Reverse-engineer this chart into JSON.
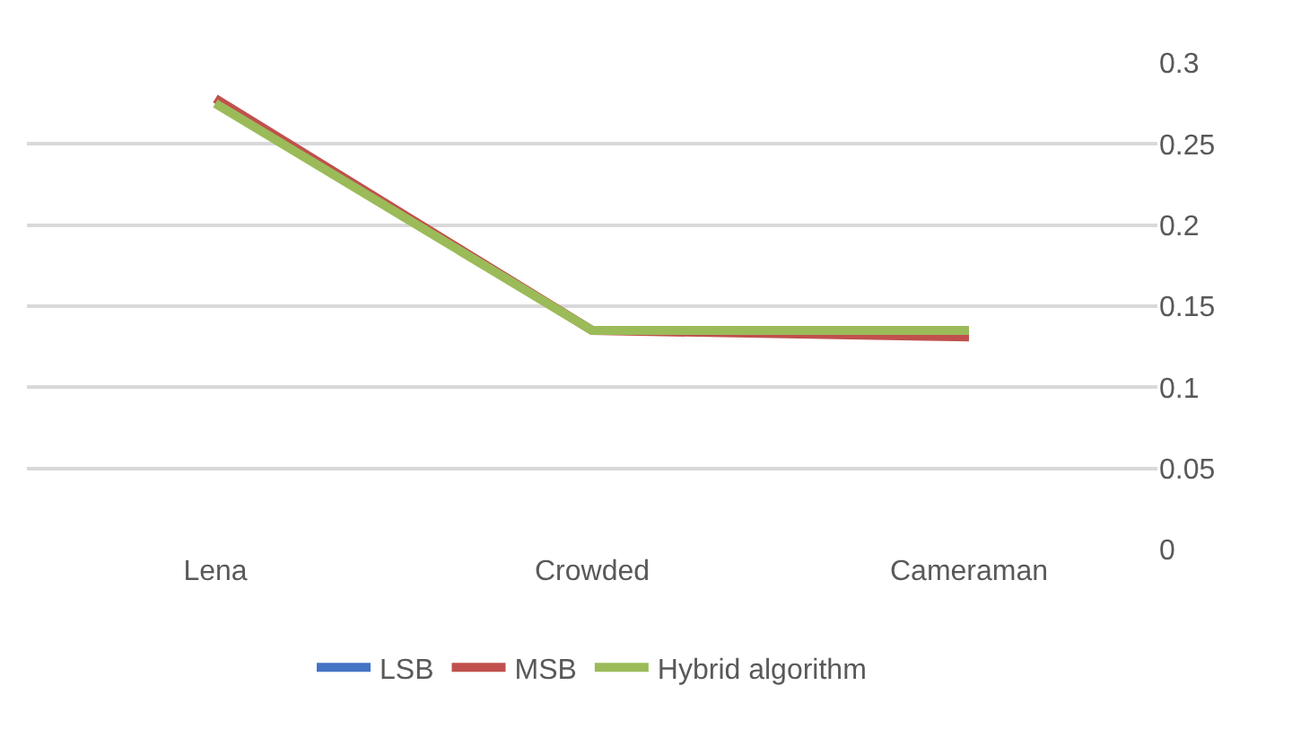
{
  "chart_data": {
    "type": "line",
    "categories": [
      "Lena",
      "Crowded",
      "Cameraman"
    ],
    "series": [
      {
        "name": "LSB",
        "color": "#4472c4",
        "values": [
          null,
          null,
          null
        ]
      },
      {
        "name": "MSB",
        "color": "#c0504d",
        "values": [
          0.278,
          0.135,
          0.131
        ]
      },
      {
        "name": "Hybrid algorithm",
        "color": "#9bbb59",
        "values": [
          0.275,
          0.135,
          0.135
        ]
      }
    ],
    "ylim": [
      0,
      0.3
    ],
    "yticks": [
      0,
      0.05,
      0.1,
      0.15,
      0.2,
      0.25,
      0.3
    ],
    "grid": "y",
    "legend": "bottom",
    "marker": "none",
    "line_style": "solid"
  }
}
